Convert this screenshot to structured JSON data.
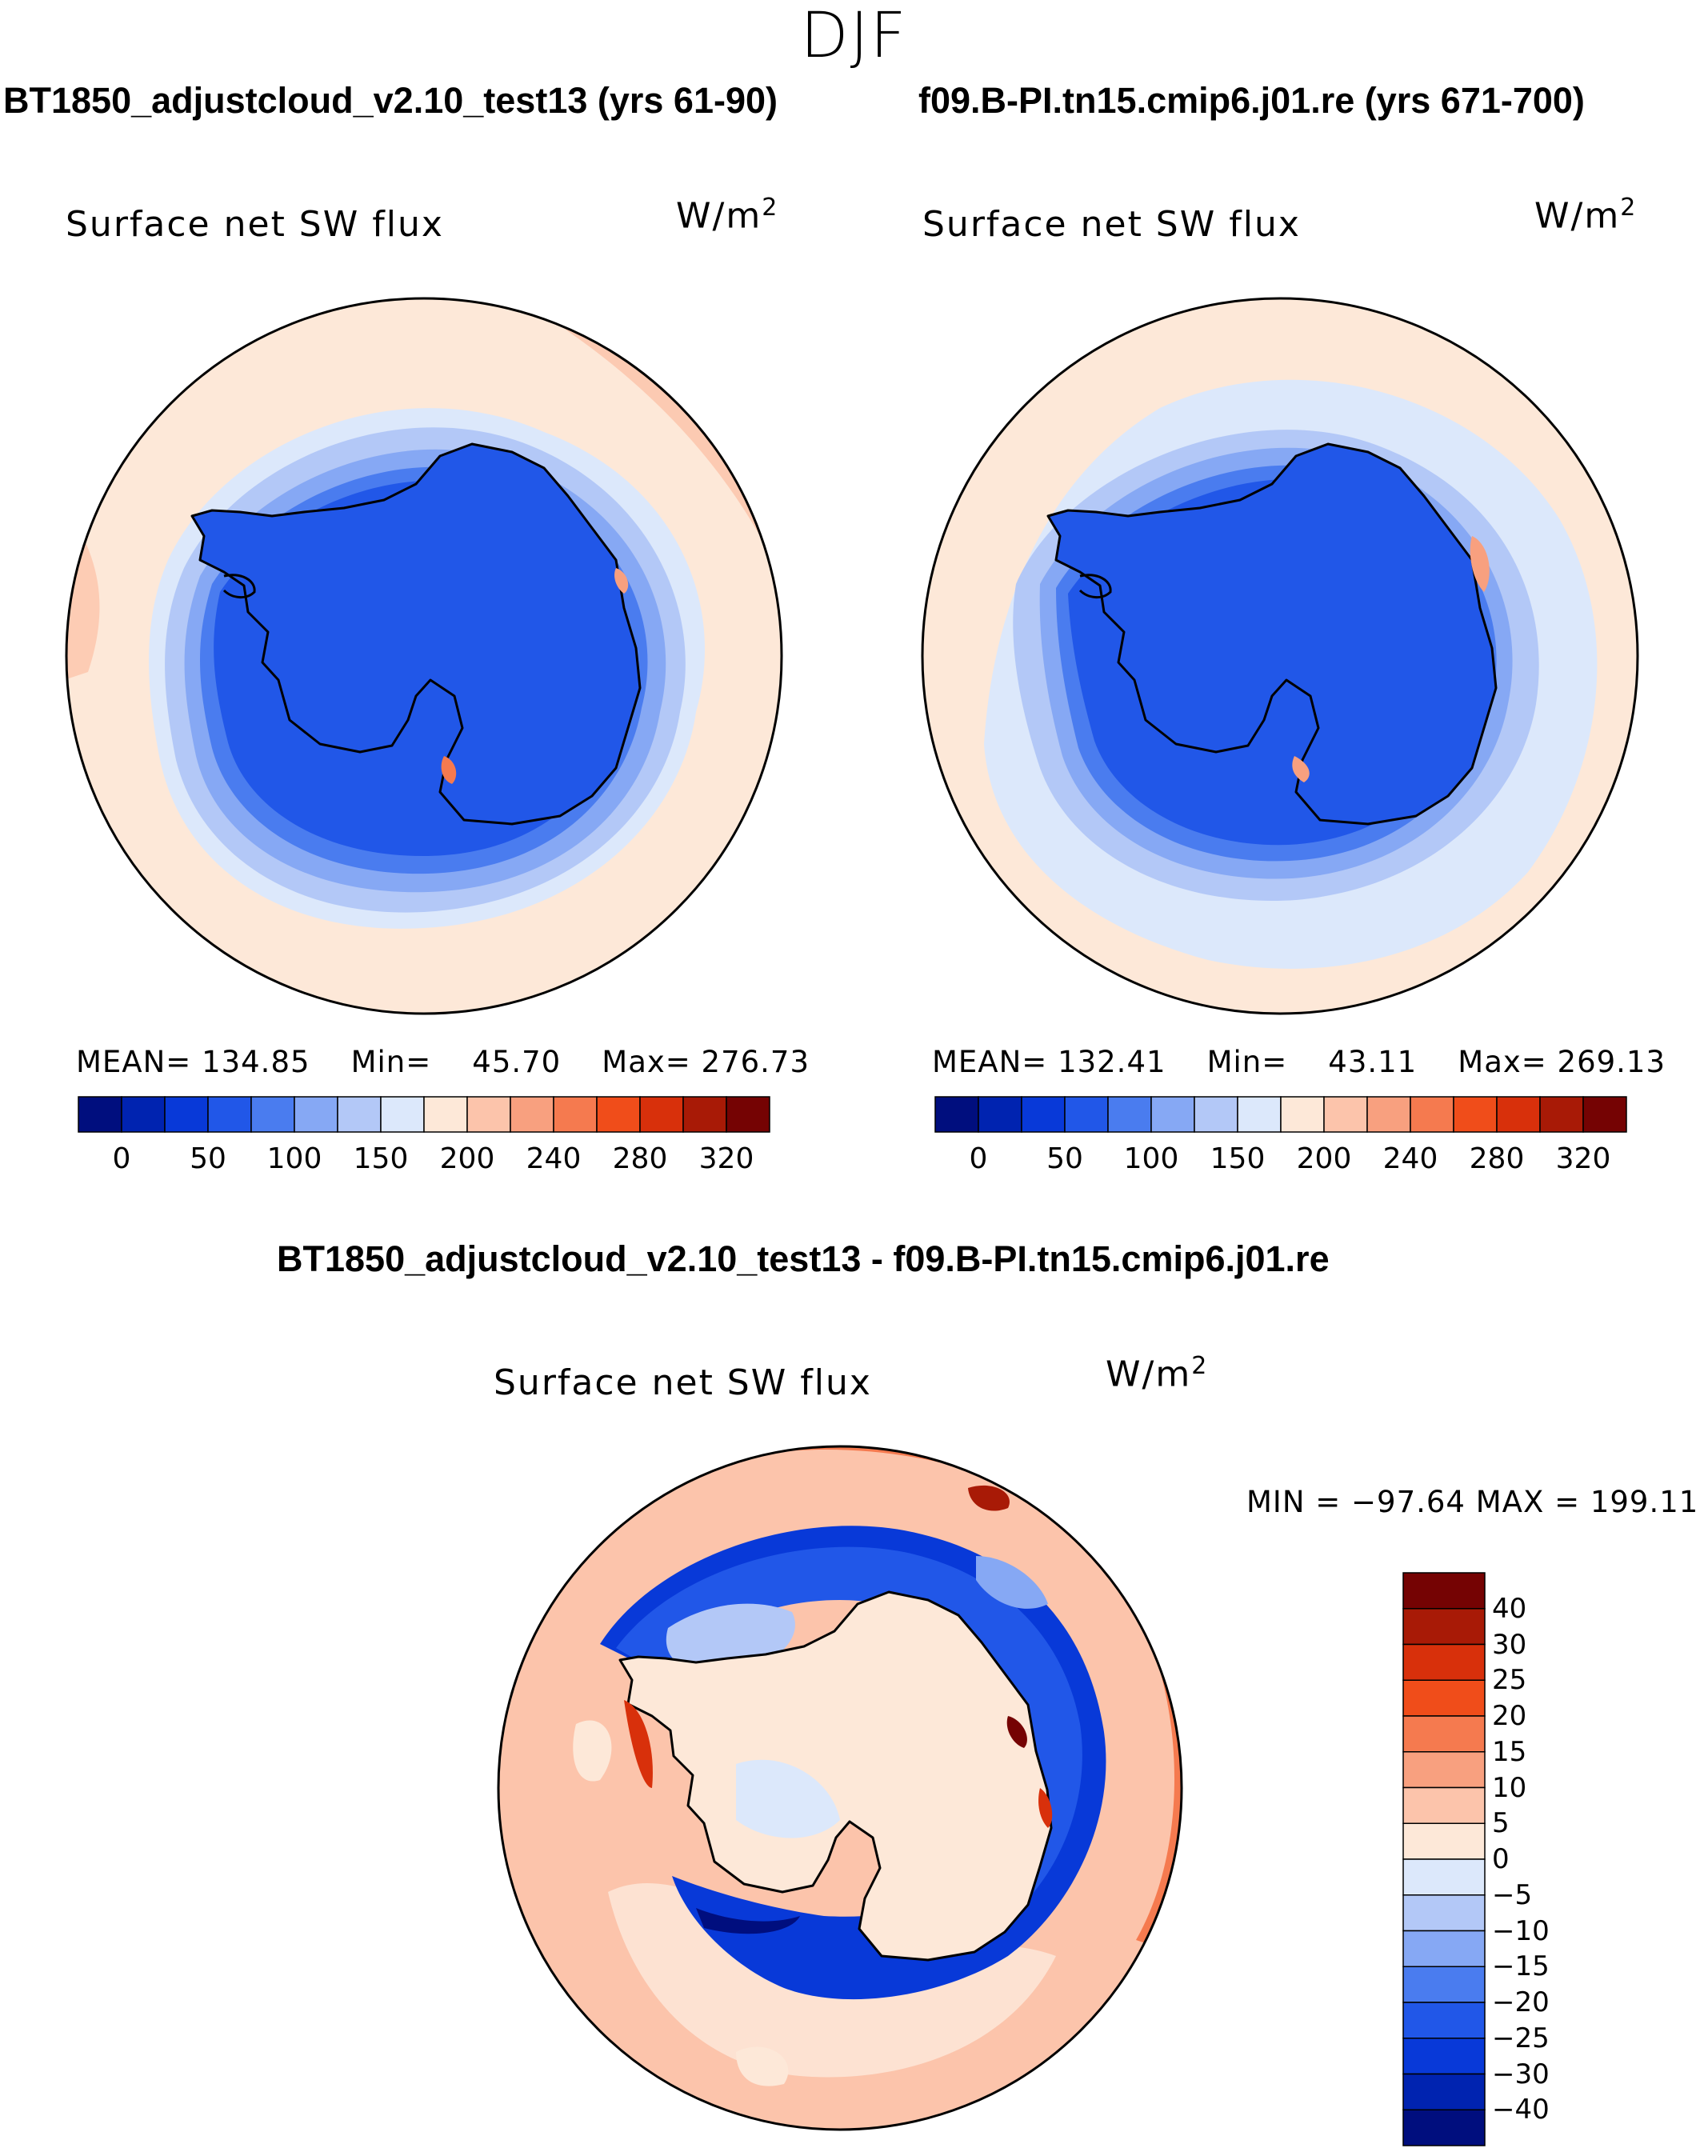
{
  "season": "DJF",
  "titles": {
    "case1": "BT1850_adjustcloud_v2.10_test13 (yrs 61-90)",
    "case2": "f09.B-PI.tn15.cmip6.j01.re (yrs 671-700)",
    "diff": "BT1850_adjustcloud_v2.10_test13 - f09.B-PI.tn15.cmip6.j01.re"
  },
  "variable": "Surface net SW flux",
  "units": "W/m",
  "units_exp": "2",
  "panels": [
    {
      "mean_label": "MEAN=",
      "mean": "134.85",
      "min_label": "Min=",
      "min": "45.70",
      "max_label": "Max=",
      "max": "276.73"
    },
    {
      "mean_label": "MEAN=",
      "mean": "132.41",
      "min_label": "Min=",
      "min": "43.11",
      "max_label": "Max=",
      "max": "269.13"
    }
  ],
  "diff_stats": "MIN = −97.64 MAX = 199.11",
  "colors": {
    "abs_scale": [
      "#000e7e",
      "#0023b0",
      "#0839d8",
      "#2157e8",
      "#4a7cef",
      "#86a8f4",
      "#b3c8f7",
      "#dce8fb",
      "#fde8d8",
      "#fcc4ab",
      "#f8a07f",
      "#f57a4f",
      "#f04d1a",
      "#d8300b",
      "#a81a06",
      "#750303"
    ],
    "diff_scale": [
      "#000e7e",
      "#0023b0",
      "#0839d8",
      "#2157e8",
      "#4a7cef",
      "#86a8f4",
      "#b3c8f7",
      "#dce8fb",
      "#fde8d8",
      "#fcc4ab",
      "#f8a07f",
      "#f57a4f",
      "#f04d1a",
      "#d8300b",
      "#a81a06",
      "#750303"
    ]
  },
  "chart_data": [
    {
      "type": "heatmap",
      "title": "BT1850_adjustcloud_v2.10_test13 (yrs 61-90)",
      "label": "Surface net SW flux",
      "units": "W/m2",
      "projection": "south polar stereographic",
      "mean": 134.85,
      "min": 45.7,
      "max": 276.73,
      "colorbar_ticks": [
        "0",
        "50",
        "100",
        "150",
        "200",
        "240",
        "280",
        "320"
      ],
      "levels": [
        0,
        25,
        50,
        75,
        100,
        125,
        150,
        175,
        200,
        220,
        240,
        260,
        280,
        300,
        320
      ]
    },
    {
      "type": "heatmap",
      "title": "f09.B-PI.tn15.cmip6.j01.re (yrs 671-700)",
      "label": "Surface net SW flux",
      "units": "W/m2",
      "projection": "south polar stereographic",
      "mean": 132.41,
      "min": 43.11,
      "max": 269.13,
      "colorbar_ticks": [
        "0",
        "50",
        "100",
        "150",
        "200",
        "240",
        "280",
        "320"
      ],
      "levels": [
        0,
        25,
        50,
        75,
        100,
        125,
        150,
        175,
        200,
        220,
        240,
        260,
        280,
        300,
        320
      ]
    },
    {
      "type": "heatmap",
      "title": "BT1850_adjustcloud_v2.10_test13 - f09.B-PI.tn15.cmip6.j01.re",
      "label": "Surface net SW flux",
      "units": "W/m2",
      "projection": "south polar stereographic",
      "min": -97.64,
      "max": 199.11,
      "colorbar_ticks": [
        "40",
        "30",
        "25",
        "20",
        "15",
        "10",
        "5",
        "0",
        "−5",
        "−10",
        "−15",
        "−20",
        "−25",
        "−30",
        "−40"
      ],
      "levels": [
        -40,
        -30,
        -25,
        -20,
        -15,
        -10,
        -5,
        0,
        5,
        10,
        15,
        20,
        25,
        30,
        40
      ]
    }
  ]
}
